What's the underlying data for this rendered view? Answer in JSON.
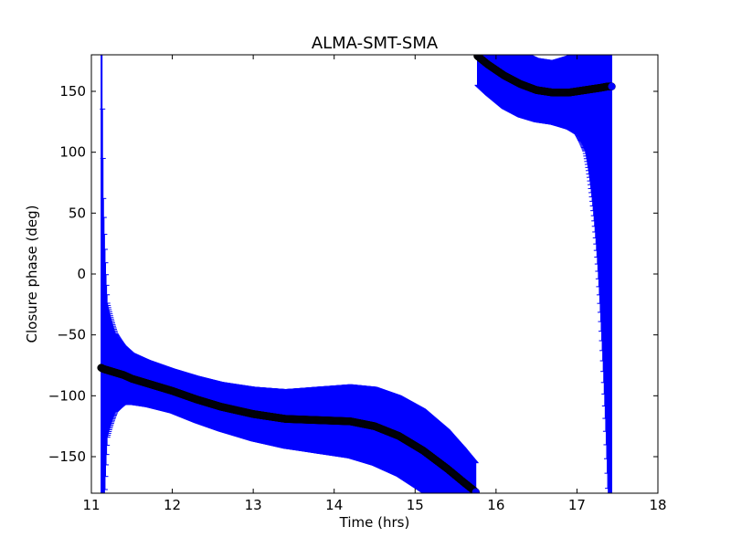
{
  "chart_data": {
    "type": "scatter",
    "title": "ALMA-SMT-SMA",
    "xlabel": "Time (hrs)",
    "ylabel": "Closure phase (deg)",
    "xlim": [
      11,
      18
    ],
    "ylim": [
      -180,
      180
    ],
    "xticks": [
      11,
      12,
      13,
      14,
      15,
      16,
      17,
      18
    ],
    "xtick_labels": [
      "11",
      "12",
      "13",
      "14",
      "15",
      "16",
      "17",
      "18"
    ],
    "yticks": [
      -150,
      -100,
      -50,
      0,
      50,
      100,
      150
    ],
    "ytick_labels": [
      "−150",
      "−100",
      "−50",
      "0",
      "50",
      "100",
      "150"
    ],
    "grid": false,
    "marker_color": "#000022",
    "errorbar_color": "#0000ff",
    "series": [
      {
        "points": [
          {
            "t": 11.12,
            "phase": -77,
            "err": 400
          },
          {
            "t": 11.15,
            "phase": -78,
            "err": 140
          },
          {
            "t": 11.2,
            "phase": -79,
            "err": 55
          },
          {
            "t": 11.3,
            "phase": -81,
            "err": 32
          },
          {
            "t": 11.4,
            "phase": -83,
            "err": 24
          },
          {
            "t": 11.5,
            "phase": -86,
            "err": 21
          },
          {
            "t": 11.7,
            "phase": -90,
            "err": 19
          },
          {
            "t": 12.0,
            "phase": -96,
            "err": 18
          },
          {
            "t": 12.3,
            "phase": -103,
            "err": 19
          },
          {
            "t": 12.6,
            "phase": -109,
            "err": 20
          },
          {
            "t": 13.0,
            "phase": -115,
            "err": 22
          },
          {
            "t": 13.4,
            "phase": -119,
            "err": 24
          },
          {
            "t": 13.8,
            "phase": -120,
            "err": 27
          },
          {
            "t": 14.2,
            "phase": -121,
            "err": 30
          },
          {
            "t": 14.5,
            "phase": -125,
            "err": 32
          },
          {
            "t": 14.8,
            "phase": -133,
            "err": 33
          },
          {
            "t": 15.1,
            "phase": -145,
            "err": 34
          },
          {
            "t": 15.4,
            "phase": -160,
            "err": 32
          },
          {
            "t": 15.6,
            "phase": -171,
            "err": 28
          },
          {
            "t": 15.75,
            "phase": -179,
            "err": 24
          }
        ]
      },
      {
        "points": [
          {
            "t": 15.77,
            "phase": 179,
            "err": 24
          },
          {
            "t": 15.9,
            "phase": 172,
            "err": 25
          },
          {
            "t": 16.1,
            "phase": 163,
            "err": 27
          },
          {
            "t": 16.3,
            "phase": 156,
            "err": 27
          },
          {
            "t": 16.5,
            "phase": 151,
            "err": 26
          },
          {
            "t": 16.7,
            "phase": 149,
            "err": 26
          },
          {
            "t": 16.9,
            "phase": 149,
            "err": 30
          },
          {
            "t": 17.0,
            "phase": 150,
            "err": 35
          },
          {
            "t": 17.1,
            "phase": 151,
            "err": 50
          },
          {
            "t": 17.2,
            "phase": 152,
            "err": 100
          },
          {
            "t": 17.3,
            "phase": 153,
            "err": 200
          },
          {
            "t": 17.38,
            "phase": 154,
            "err": 330
          },
          {
            "t": 17.43,
            "phase": 154,
            "err": 400
          }
        ]
      }
    ]
  }
}
